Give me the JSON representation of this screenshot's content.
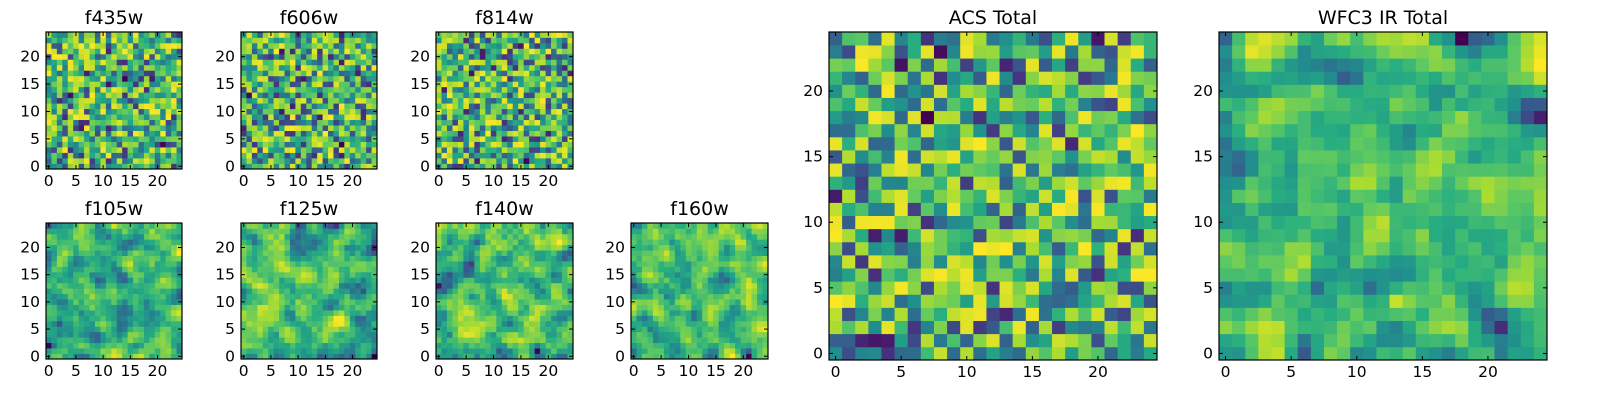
{
  "chart_data": {
    "type": "heatmap",
    "colormap": "viridis",
    "grid": false,
    "panels": [
      {
        "id": "f435w",
        "title": "f435w",
        "size": 25,
        "seed": 11,
        "smooth": 0,
        "xticks": [
          0,
          5,
          10,
          15,
          20
        ],
        "yticks": [
          0,
          5,
          10,
          15,
          20
        ],
        "origin": "lower"
      },
      {
        "id": "f606w",
        "title": "f606w",
        "size": 25,
        "seed": 23,
        "smooth": 0,
        "xticks": [
          0,
          5,
          10,
          15,
          20
        ],
        "yticks": [
          0,
          5,
          10,
          15,
          20
        ],
        "origin": "lower"
      },
      {
        "id": "f814w",
        "title": "f814w",
        "size": 25,
        "seed": 37,
        "smooth": 0,
        "xticks": [
          0,
          5,
          10,
          15,
          20
        ],
        "yticks": [
          0,
          5,
          10,
          15,
          20
        ],
        "origin": "lower"
      },
      {
        "id": "f105w",
        "title": "f105w",
        "size": 25,
        "seed": 41,
        "smooth": 1,
        "xticks": [
          0,
          5,
          10,
          15,
          20
        ],
        "yticks": [
          0,
          5,
          10,
          15,
          20
        ],
        "origin": "lower"
      },
      {
        "id": "f125w",
        "title": "f125w",
        "size": 25,
        "seed": 53,
        "smooth": 1,
        "xticks": [
          0,
          5,
          10,
          15,
          20
        ],
        "yticks": [
          0,
          5,
          10,
          15,
          20
        ],
        "origin": "lower"
      },
      {
        "id": "f140w",
        "title": "f140w",
        "size": 25,
        "seed": 67,
        "smooth": 1,
        "xticks": [
          0,
          5,
          10,
          15,
          20
        ],
        "yticks": [
          0,
          5,
          10,
          15,
          20
        ],
        "origin": "lower"
      },
      {
        "id": "f160w",
        "title": "f160w",
        "size": 25,
        "seed": 79,
        "smooth": 1,
        "xticks": [
          0,
          5,
          10,
          15,
          20
        ],
        "yticks": [
          0,
          5,
          10,
          15,
          20
        ],
        "origin": "lower"
      },
      {
        "id": "acs-total",
        "title": "ACS Total",
        "size": 25,
        "seed": 97,
        "smooth": 0,
        "xticks": [
          0,
          5,
          10,
          15,
          20
        ],
        "yticks": [
          0,
          5,
          10,
          15,
          20
        ],
        "origin": "lower"
      },
      {
        "id": "wfc3-ir-total",
        "title": "WFC3 IR Total",
        "size": 25,
        "seed": 113,
        "smooth": 1,
        "xticks": [
          0,
          5,
          10,
          15,
          20
        ],
        "yticks": [
          0,
          5,
          10,
          15,
          20
        ],
        "origin": "lower"
      }
    ]
  }
}
